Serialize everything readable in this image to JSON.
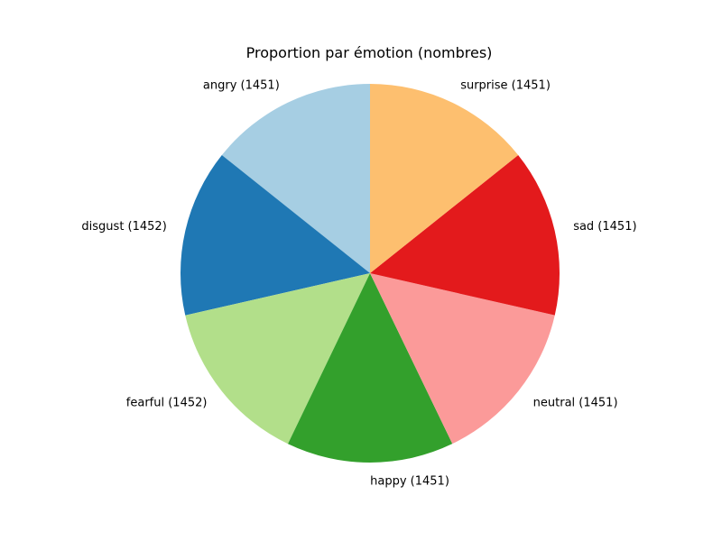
{
  "chart_data": {
    "type": "pie",
    "title": "Proportion par émotion (nombres)",
    "start_angle_deg": 90,
    "direction": "counterclockwise",
    "slices": [
      {
        "label": "angry (1451)",
        "value": 1451,
        "color": "#a6cee3"
      },
      {
        "label": "disgust (1452)",
        "value": 1452,
        "color": "#1f78b4"
      },
      {
        "label": "fearful (1452)",
        "value": 1452,
        "color": "#b2df8a"
      },
      {
        "label": "happy (1451)",
        "value": 1451,
        "color": "#33a02c"
      },
      {
        "label": "neutral (1451)",
        "value": 1451,
        "color": "#fb9a99"
      },
      {
        "label": "sad (1451)",
        "value": 1451,
        "color": "#e31a1c"
      },
      {
        "label": "surprise (1451)",
        "value": 1451,
        "color": "#fdbf6f"
      }
    ]
  }
}
